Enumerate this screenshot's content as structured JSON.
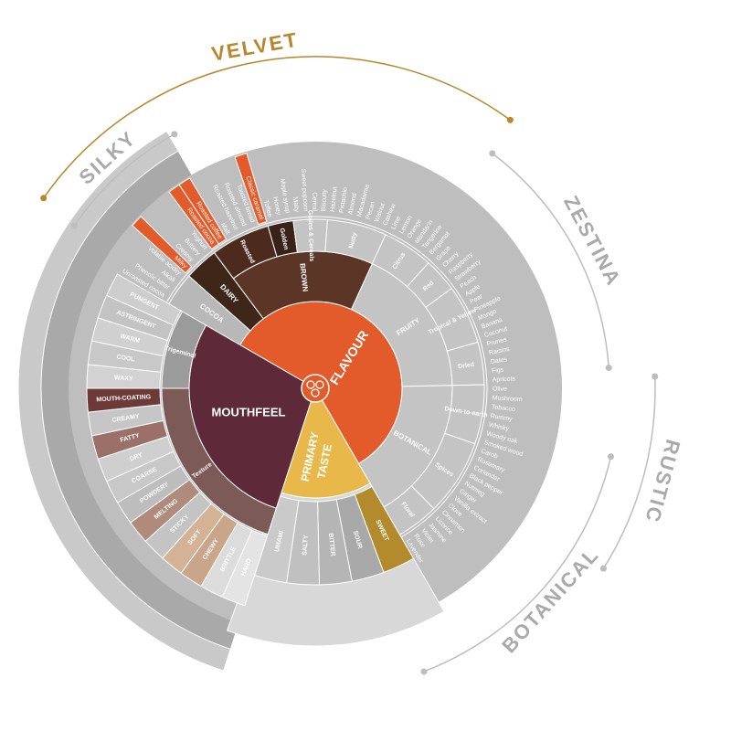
{
  "outer_labels": [
    "VELVET",
    "SILKY",
    "ZESTINA",
    "RUSTIC",
    "BOTANICAL"
  ],
  "wheel": {
    "flavour": {
      "label": "FLAVOUR",
      "groups": [
        {
          "label": "COCOA",
          "leaves": [
            "Unroasted cocoa",
            "Phenolic bitter",
            "Alkali",
            "Volatile acidity"
          ]
        },
        {
          "label": "DAIRY",
          "leaves": [
            "Milky",
            "Creamy",
            "Buttery",
            "Yoghurt"
          ]
        },
        {
          "label": "BROWN",
          "subgroups": [
            {
              "label": "Roasted",
              "leaves": [
                "Roasted cocoa",
                "Roasted coffee",
                "Malt",
                "Roasted hazelnut",
                "Roasted almond",
                "Toasted bread",
                "Classic caramel"
              ]
            },
            {
              "label": "Golden",
              "leaves": [
                "Toffee",
                "Honey",
                "Maple syrup"
              ]
            },
            {
              "label": "Grains & Cereals",
              "leaves": [
                "Malty",
                "Sweet popcorn",
                "Cereal",
                "Biscuity"
              ]
            },
            {
              "label": "Nutty",
              "leaves": [
                "Hazelnut",
                "Pistachio",
                "Almond",
                "Macadamia",
                "Pecan",
                "Walnut",
                "Cashew"
              ]
            }
          ]
        },
        {
          "label": "FRUITY",
          "subgroups": [
            {
              "label": "Citrus",
              "leaves": [
                "Lime",
                "Lemon",
                "Orange",
                "Mandarin",
                "Tangerine",
                "Bergamot"
              ]
            },
            {
              "label": "Red",
              "leaves": [
                "Grape",
                "Cherry",
                "Raspberry",
                "Strawberry"
              ]
            },
            {
              "label": "Tropical & Yellow",
              "leaves": [
                "Peach",
                "Apple",
                "Pear",
                "Pineapple",
                "Mango",
                "Banana",
                "Coconut"
              ]
            },
            {
              "label": "Dried",
              "leaves": [
                "Prunes",
                "Raisins",
                "Dates",
                "Figs",
                "Apricots"
              ]
            }
          ]
        },
        {
          "label": "BOTANICAL",
          "subgroups": [
            {
              "label": "Down-to-earth",
              "leaves": [
                "Olive",
                "Mushroom",
                "Tobacco",
                "Rummy",
                "Whisky",
                "Woody oak",
                "Smoked wood"
              ]
            },
            {
              "label": "Spices",
              "leaves": [
                "Carob",
                "Rosemary",
                "Coriander",
                "Black pepper",
                "Nutmeg",
                "Ginger",
                "Vanilla extract",
                "Clove",
                "Cinnamon"
              ]
            },
            {
              "label": "Floral",
              "leaves": [
                "Licorice",
                "Jasmine",
                "Violet",
                "Rose",
                "Lavender"
              ]
            }
          ]
        }
      ]
    },
    "primary_taste": {
      "label_lines": [
        "PRIMARY",
        "TASTE"
      ],
      "leaves": [
        "SWEET",
        "SOUR",
        "BITTER",
        "SALTY",
        "UMAMI"
      ]
    },
    "mouthfeel": {
      "label": "MOUTHFEEL",
      "groups": [
        {
          "label": "Texture",
          "leaves": [
            "HARD",
            "BRITTLE",
            "CHEWY",
            "SOFT",
            "STICKY",
            "MELTING",
            "POWDERY",
            "COARSE",
            "DRY",
            "FATTY",
            "CREAMY",
            "MOUTH-COATING"
          ]
        },
        {
          "label": "Trigeminal",
          "leaves": [
            "WAXY",
            "COOL",
            "WARM",
            "ASTRINGENT",
            "PUNGENT"
          ]
        }
      ]
    }
  }
}
